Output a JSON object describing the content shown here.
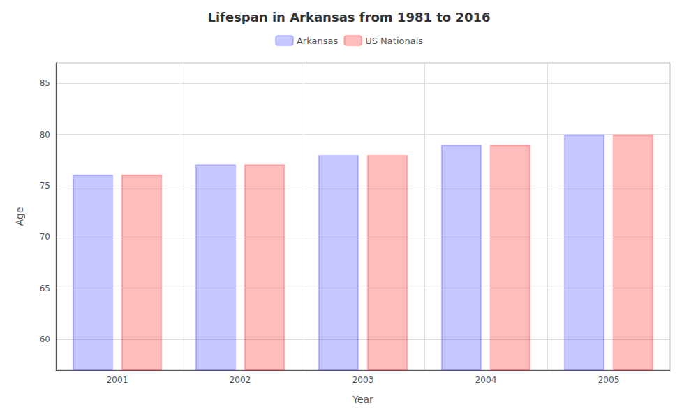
{
  "chart_data": {
    "type": "bar",
    "title": "Lifespan in Arkansas from 1981 to 2016",
    "xlabel": "Year",
    "ylabel": "Age",
    "categories": [
      "2001",
      "2002",
      "2003",
      "2004",
      "2005"
    ],
    "series": [
      {
        "name": "Arkansas",
        "color": "#4444ff",
        "values": [
          76.1,
          77.1,
          78.0,
          79.0,
          80.0
        ]
      },
      {
        "name": "US Nationals",
        "color": "#ff2222",
        "values": [
          76.1,
          77.1,
          78.0,
          79.0,
          80.0
        ]
      }
    ],
    "ylim": [
      57,
      87
    ],
    "yticks": [
      60,
      65,
      70,
      75,
      80,
      85
    ],
    "grid": true,
    "legend": "top"
  }
}
